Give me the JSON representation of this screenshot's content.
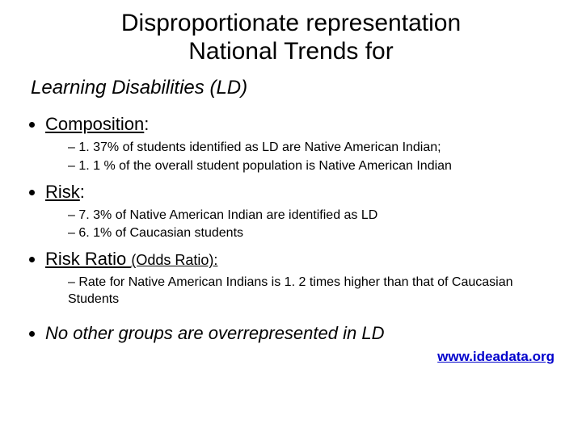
{
  "title_line1": "Disproportionate representation",
  "title_line2": "National Trends for",
  "subtitle": "Learning Disabilities (LD)",
  "sections": {
    "composition": {
      "heading": "Composition",
      "colon": ":",
      "items": [
        "1. 37% of students identified as LD are Native American Indian;",
        "1. 1 % of the overall student population is Native American Indian"
      ]
    },
    "risk": {
      "heading": "Risk",
      "colon": ":",
      "items": [
        "7. 3% of Native American Indian are identified as LD",
        "6. 1% of Caucasian students"
      ]
    },
    "risk_ratio": {
      "heading": "Risk Ratio ",
      "label": "(Odds Ratio):",
      "items": [
        "Rate for Native American Indians is 1. 2 times higher than that of Caucasian Students"
      ]
    }
  },
  "closing": "No other groups are overrepresented in LD",
  "link": "www.ideadata.org"
}
